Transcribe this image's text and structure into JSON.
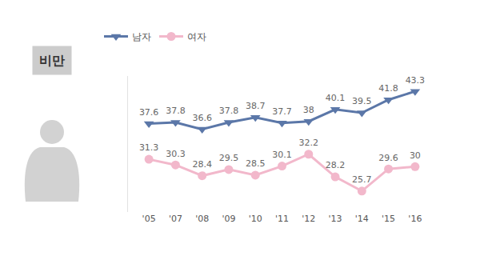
{
  "chart_data": {
    "type": "line",
    "title": "비만",
    "categories": [
      "'05",
      "'07",
      "'08",
      "'09",
      "'10",
      "'11",
      "'12",
      "'13",
      "'14",
      "'15",
      "'16"
    ],
    "series": [
      {
        "name": "남자",
        "color": "#5b77a8",
        "marker": "triangle-down",
        "line_style": "solid",
        "values": [
          37.6,
          37.8,
          36.6,
          37.8,
          38.7,
          37.7,
          38.0,
          40.1,
          39.5,
          41.8,
          43.3
        ]
      },
      {
        "name": "여자",
        "color": "#f2b8cb",
        "marker": "circle",
        "line_style": "solid",
        "values": [
          31.3,
          30.3,
          28.4,
          29.5,
          28.5,
          30.1,
          32.2,
          28.2,
          25.7,
          29.6,
          30.0
        ]
      }
    ],
    "ylim": [
      22,
      46
    ],
    "grid": false,
    "legend": "top left",
    "data_labels": true,
    "tick_labels": "x"
  }
}
